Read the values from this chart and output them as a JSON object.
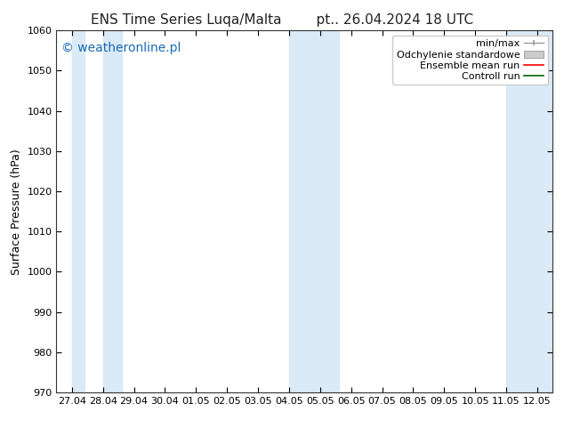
{
  "title_left": "ENS Time Series Luqa/Malta",
  "title_right": "pt.. 26.04.2024 18 UTC",
  "ylabel": "Surface Pressure (hPa)",
  "ylim": [
    970,
    1060
  ],
  "yticks": [
    970,
    980,
    990,
    1000,
    1010,
    1020,
    1030,
    1040,
    1050,
    1060
  ],
  "xtick_labels": [
    "27.04",
    "28.04",
    "29.04",
    "30.04",
    "01.05",
    "02.05",
    "03.05",
    "04.05",
    "05.05",
    "06.05",
    "07.05",
    "08.05",
    "09.05",
    "10.05",
    "11.05",
    "12.05"
  ],
  "shaded_bands": [
    {
      "xmin": 0.0,
      "xmax": 0.4
    },
    {
      "xmin": 1.0,
      "xmax": 1.6
    },
    {
      "xmin": 7.0,
      "xmax": 8.6
    },
    {
      "xmin": 14.0,
      "xmax": 15.5
    }
  ],
  "band_color": "#daeaf7",
  "watermark_text": "© weatheronline.pl",
  "watermark_color": "#1a6bb5",
  "legend_items": [
    {
      "label": "min/max",
      "color": "#aaaaaa",
      "type": "errorbar"
    },
    {
      "label": "Odchylenie standardowe",
      "color": "#cccccc",
      "type": "bar"
    },
    {
      "label": "Ensemble mean run",
      "color": "red",
      "type": "line"
    },
    {
      "label": "Controll run",
      "color": "green",
      "type": "line"
    }
  ],
  "background_color": "#ffffff",
  "title_fontsize": 11,
  "label_fontsize": 9,
  "tick_fontsize": 8,
  "legend_fontsize": 8
}
